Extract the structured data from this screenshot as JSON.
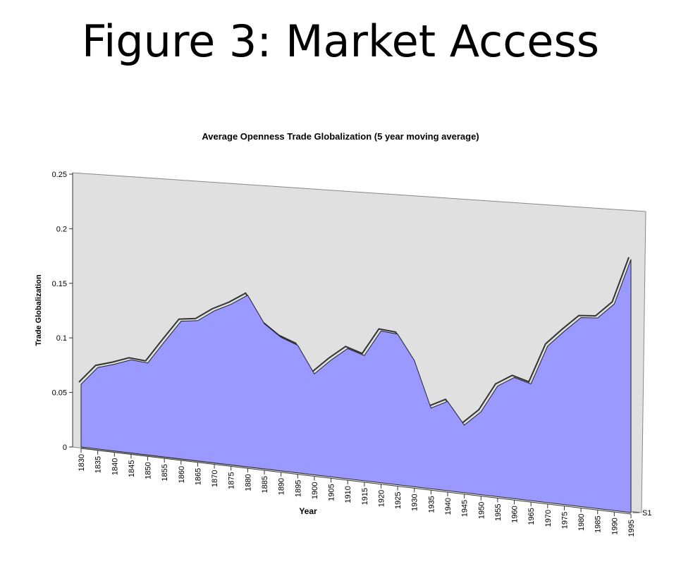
{
  "heading": "Figure 3: Market Access",
  "chart_data": {
    "type": "area3d",
    "title": "Average Openness Trade Globalization (5 year moving average)",
    "y_label": "Trade Globalization",
    "x_label": "Year",
    "x": [
      1830,
      1835,
      1840,
      1845,
      1850,
      1855,
      1860,
      1865,
      1870,
      1875,
      1880,
      1885,
      1890,
      1895,
      1900,
      1905,
      1910,
      1915,
      1920,
      1925,
      1930,
      1935,
      1940,
      1945,
      1950,
      1955,
      1960,
      1965,
      1970,
      1975,
      1980,
      1985,
      1990,
      1995
    ],
    "xlim": [
      1830,
      1995
    ],
    "xticks": [
      1830,
      1835,
      1840,
      1845,
      1850,
      1855,
      1860,
      1865,
      1870,
      1875,
      1880,
      1885,
      1890,
      1895,
      1900,
      1905,
      1910,
      1915,
      1920,
      1925,
      1930,
      1935,
      1940,
      1945,
      1950,
      1955,
      1960,
      1965,
      1970,
      1975,
      1980,
      1985,
      1990,
      1995
    ],
    "ylim": [
      0,
      0.25
    ],
    "yticks": [
      0,
      0.05,
      0.1,
      0.15,
      0.2,
      0.25
    ],
    "series": [
      {
        "name": "S1",
        "color": "#9999ff",
        "values": [
          0.06,
          0.077,
          0.081,
          0.086,
          0.084,
          0.104,
          0.123,
          0.124,
          0.133,
          0.139,
          0.147,
          0.123,
          0.112,
          0.106,
          0.083,
          0.095,
          0.105,
          0.1,
          0.12,
          0.118,
          0.098,
          0.062,
          0.068,
          0.051,
          0.062,
          0.082,
          0.089,
          0.085,
          0.113,
          0.124,
          0.134,
          0.134,
          0.144,
          0.175
        ]
      }
    ]
  }
}
